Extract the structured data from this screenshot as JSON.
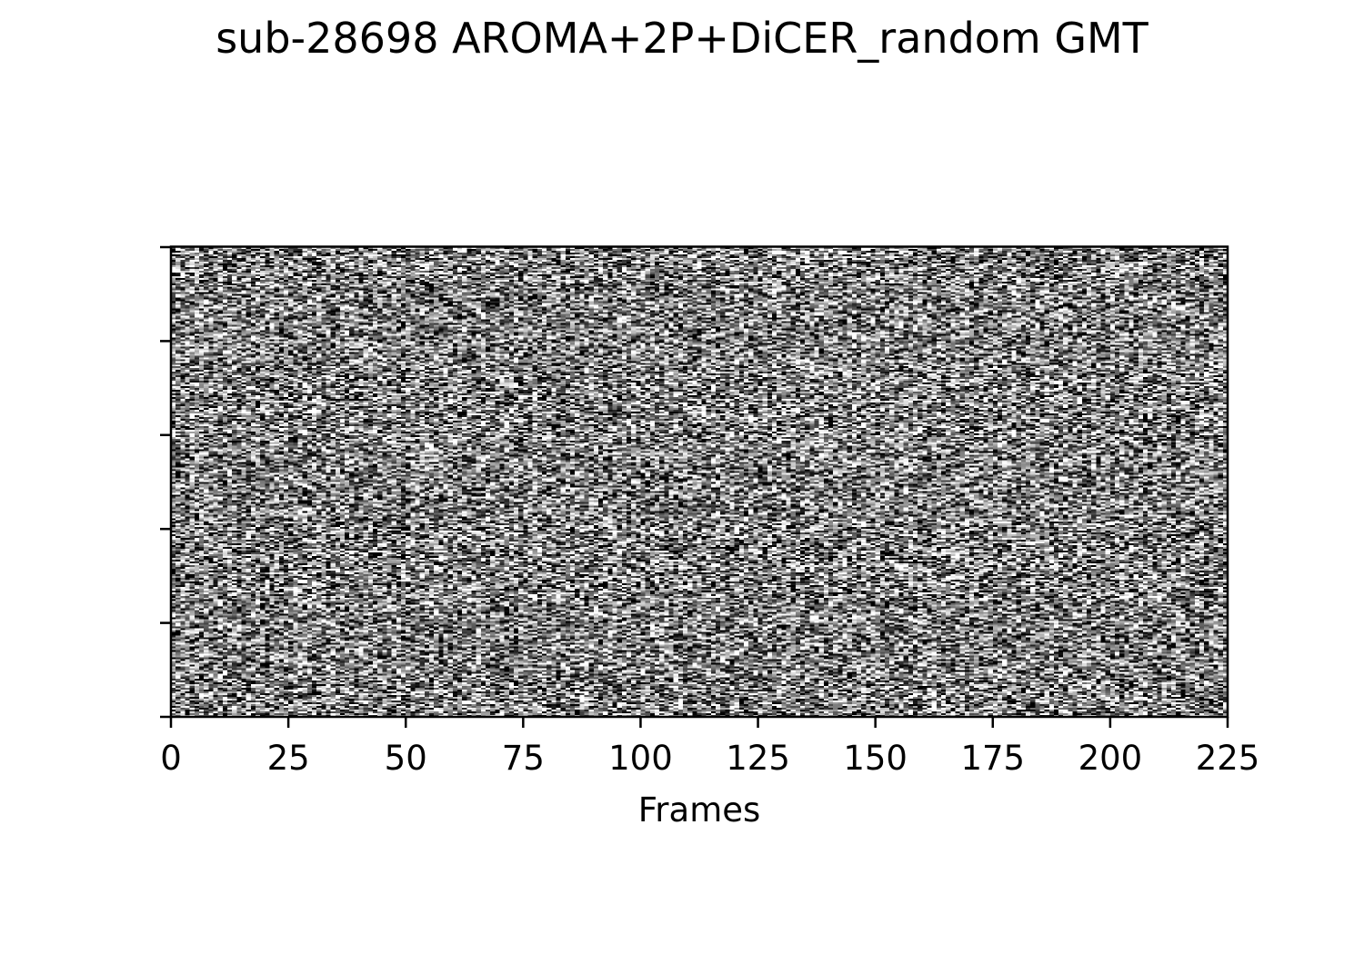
{
  "chart_data": {
    "type": "heatmap",
    "title": "sub-28698 AROMA+2P+DiCER_random GMT",
    "xlabel": "Frames",
    "ylabel": "",
    "xlim": [
      0,
      225
    ],
    "x_ticks": [
      0,
      25,
      50,
      75,
      100,
      125,
      150,
      175,
      200,
      225
    ],
    "x_tick_labels": [
      "0",
      "25",
      "50",
      "75",
      "100",
      "125",
      "150",
      "175",
      "200",
      "225"
    ],
    "y_tick_count": 6,
    "y_tick_labels": [],
    "colormap": "gray",
    "colors": {
      "low": "#000000",
      "high": "#ffffff",
      "axes": "#000000",
      "background": "#ffffff"
    },
    "n_frames": 225,
    "values_description_note": ""
  }
}
